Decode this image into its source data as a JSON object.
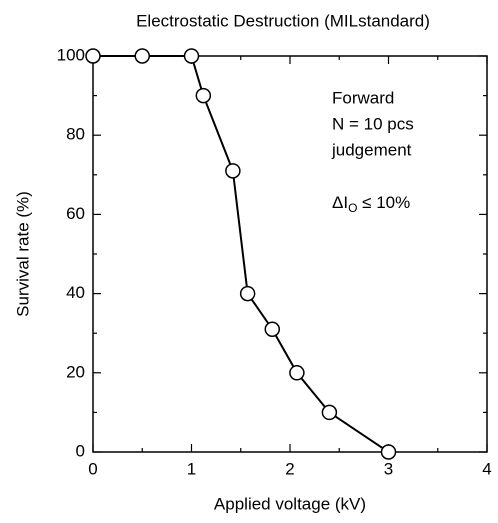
{
  "chart_data": {
    "type": "line",
    "title": "Electrostatic Destruction (MILstandard)",
    "xlabel": "Applied voltage  (kV)",
    "ylabel": "Survival rate  (%)",
    "annotations": [
      "Forward",
      "N = 10 pcs",
      "judgement"
    ],
    "annotation_formula": [
      "ΔI",
      "O",
      " ≤ 10%"
    ],
    "x": [
      0,
      0.5,
      1.0,
      1.12,
      1.42,
      1.57,
      1.82,
      2.07,
      2.4,
      3.0
    ],
    "series": [
      {
        "color": "#000000",
        "values": [
          100,
          100,
          100,
          90,
          71,
          40,
          31,
          20,
          10,
          0
        ]
      }
    ],
    "xlim": [
      0,
      4
    ],
    "xticks": [
      0,
      1,
      2,
      3,
      4
    ],
    "xminor": [
      0.5,
      1.5,
      2.5,
      3.5
    ],
    "ylim": [
      0,
      100
    ],
    "yticks": [
      0,
      20,
      40,
      60,
      80,
      100
    ],
    "yminor": [
      10,
      30,
      50,
      70,
      90
    ],
    "grid": false
  }
}
